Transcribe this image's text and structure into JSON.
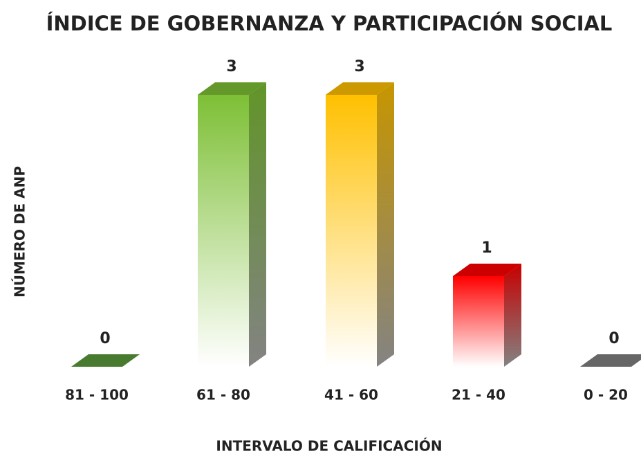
{
  "chart_data": {
    "type": "bar3d",
    "title": "ÍNDICE DE GOBERNANZA Y PARTICIPACIÓN SOCIAL",
    "x_label": "INTERVALO DE CALIFICACIÓN",
    "y_label": "NÚMERO DE ANP",
    "categories": [
      "81 - 100",
      "61 - 80",
      "41 - 60",
      "21 - 40",
      "0 - 20"
    ],
    "values": [
      0,
      3,
      3,
      1,
      0
    ],
    "colors": [
      "#5b9a3c",
      "#7dbf35",
      "#ffc000",
      "#ff0000",
      "#808080"
    ]
  }
}
